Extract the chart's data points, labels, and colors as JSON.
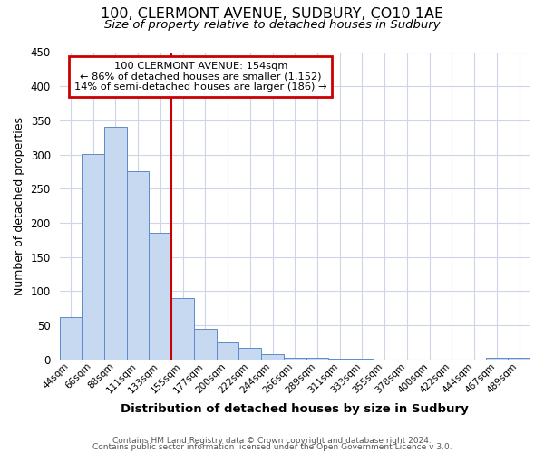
{
  "title": "100, CLERMONT AVENUE, SUDBURY, CO10 1AE",
  "subtitle": "Size of property relative to detached houses in Sudbury",
  "xlabel": "Distribution of detached houses by size in Sudbury",
  "ylabel": "Number of detached properties",
  "bin_labels": [
    "44sqm",
    "66sqm",
    "88sqm",
    "111sqm",
    "133sqm",
    "155sqm",
    "177sqm",
    "200sqm",
    "222sqm",
    "244sqm",
    "266sqm",
    "289sqm",
    "311sqm",
    "333sqm",
    "355sqm",
    "378sqm",
    "400sqm",
    "422sqm",
    "444sqm",
    "467sqm",
    "489sqm"
  ],
  "bar_heights": [
    62,
    301,
    340,
    275,
    185,
    90,
    45,
    24,
    16,
    7,
    2,
    2,
    1,
    1,
    0,
    0,
    0,
    0,
    0,
    2,
    2
  ],
  "bar_color": "#c6d9f0",
  "bar_edge_color": "#5b8cc8",
  "vline_color": "#cc0000",
  "annotation_title": "100 CLERMONT AVENUE: 154sqm",
  "annotation_line1": "← 86% of detached houses are smaller (1,152)",
  "annotation_line2": "14% of semi-detached houses are larger (186) →",
  "annotation_box_edgecolor": "#cc0000",
  "ylim": [
    0,
    450
  ],
  "yticks": [
    0,
    50,
    100,
    150,
    200,
    250,
    300,
    350,
    400,
    450
  ],
  "footnote1": "Contains HM Land Registry data © Crown copyright and database right 2024.",
  "footnote2": "Contains public sector information licensed under the Open Government Licence v 3.0.",
  "bg_color": "#ffffff",
  "grid_color": "#ccd6e8"
}
